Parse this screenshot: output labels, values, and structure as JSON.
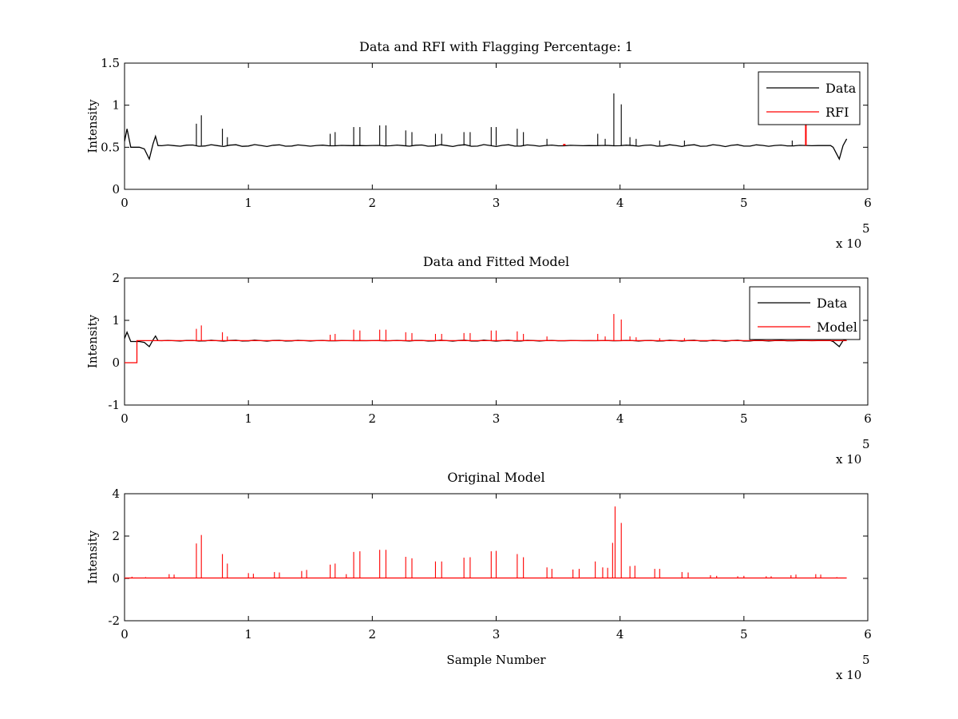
{
  "figure": {
    "background": "#ffffff",
    "panels_count": 3
  },
  "chart_data": [
    {
      "type": "line",
      "title": "Data and RFI with Flagging Percentage: 1",
      "xlabel": "",
      "ylabel": "Intensity",
      "xlim": [
        0,
        6
      ],
      "ylim": [
        0,
        1.5
      ],
      "x_ticks": [
        "0",
        "1",
        "2",
        "3",
        "4",
        "5",
        "6"
      ],
      "y_ticks": [
        "0",
        "0.5",
        "1",
        "1.5"
      ],
      "x_multiplier": "x 10",
      "x_multiplier_exp": "5",
      "legend": {
        "position": "top-right",
        "entries": [
          "Data",
          "RFI"
        ]
      },
      "colors": {
        "Data": "#000000",
        "RFI": "#ff0000"
      },
      "series": [
        {
          "name": "Data",
          "color": "#000000",
          "baseline": 0.52,
          "x_end": 5.83,
          "features": [
            {
              "x": 0.02,
              "y": 0.72
            },
            {
              "x": 0.05,
              "y": 0.5
            },
            {
              "x": 0.2,
              "y": 0.36
            },
            {
              "x": 0.25,
              "y": 0.63
            },
            {
              "x": 5.77,
              "y": 0.36
            },
            {
              "x": 5.83,
              "y": 0.6
            }
          ],
          "spikes": [
            {
              "x": 0.58,
              "y": 0.78
            },
            {
              "x": 0.62,
              "y": 0.88
            },
            {
              "x": 0.79,
              "y": 0.72
            },
            {
              "x": 0.83,
              "y": 0.62
            },
            {
              "x": 1.66,
              "y": 0.66
            },
            {
              "x": 1.7,
              "y": 0.68
            },
            {
              "x": 1.85,
              "y": 0.74
            },
            {
              "x": 1.9,
              "y": 0.74
            },
            {
              "x": 2.06,
              "y": 0.76
            },
            {
              "x": 2.11,
              "y": 0.76
            },
            {
              "x": 2.27,
              "y": 0.7
            },
            {
              "x": 2.32,
              "y": 0.68
            },
            {
              "x": 2.51,
              "y": 0.66
            },
            {
              "x": 2.56,
              "y": 0.66
            },
            {
              "x": 2.74,
              "y": 0.68
            },
            {
              "x": 2.79,
              "y": 0.68
            },
            {
              "x": 2.96,
              "y": 0.74
            },
            {
              "x": 3.0,
              "y": 0.74
            },
            {
              "x": 3.17,
              "y": 0.72
            },
            {
              "x": 3.22,
              "y": 0.68
            },
            {
              "x": 3.41,
              "y": 0.6
            },
            {
              "x": 3.82,
              "y": 0.66
            },
            {
              "x": 3.88,
              "y": 0.6
            },
            {
              "x": 3.95,
              "y": 1.14
            },
            {
              "x": 4.01,
              "y": 1.01
            },
            {
              "x": 4.08,
              "y": 0.62
            },
            {
              "x": 4.13,
              "y": 0.6
            },
            {
              "x": 4.32,
              "y": 0.58
            },
            {
              "x": 4.52,
              "y": 0.58
            },
            {
              "x": 5.39,
              "y": 0.58
            }
          ]
        },
        {
          "name": "RFI",
          "color": "#ff0000",
          "segments": [
            {
              "x0": 3.54,
              "x1": 3.56,
              "y0": 0.53,
              "y1": 0.53
            },
            {
              "x0": 5.5,
              "x1": 5.5,
              "y0": 0.52,
              "y1": 0.78
            }
          ]
        }
      ]
    },
    {
      "type": "line",
      "title": "Data and Fitted Model",
      "xlabel": "",
      "ylabel": "Intensity",
      "xlim": [
        0,
        6
      ],
      "ylim": [
        -1,
        2
      ],
      "x_ticks": [
        "0",
        "1",
        "2",
        "3",
        "4",
        "5",
        "6"
      ],
      "y_ticks": [
        "-1",
        "0",
        "1",
        "2"
      ],
      "x_multiplier": "x 10",
      "x_multiplier_exp": "5",
      "legend": {
        "position": "top-right",
        "entries": [
          "Data",
          "Model"
        ]
      },
      "colors": {
        "Data": "#000000",
        "Model": "#ff0000"
      },
      "series": [
        {
          "name": "Data",
          "color": "#000000",
          "baseline": 0.52,
          "x_end": 5.83,
          "features": [
            {
              "x": 0.02,
              "y": 0.72
            },
            {
              "x": 0.05,
              "y": 0.5
            },
            {
              "x": 0.2,
              "y": 0.38
            },
            {
              "x": 0.25,
              "y": 0.63
            },
            {
              "x": 5.77,
              "y": 0.38
            },
            {
              "x": 5.83,
              "y": 0.55
            }
          ]
        },
        {
          "name": "Model",
          "color": "#ff0000",
          "baseline": 0.52,
          "step": {
            "x_until": 0.1,
            "y": 0.0
          },
          "x_end": 5.83,
          "spikes": [
            {
              "x": 0.58,
              "y": 0.8
            },
            {
              "x": 0.62,
              "y": 0.88
            },
            {
              "x": 0.79,
              "y": 0.72
            },
            {
              "x": 0.83,
              "y": 0.62
            },
            {
              "x": 1.66,
              "y": 0.66
            },
            {
              "x": 1.7,
              "y": 0.68
            },
            {
              "x": 1.85,
              "y": 0.78
            },
            {
              "x": 1.9,
              "y": 0.76
            },
            {
              "x": 2.06,
              "y": 0.78
            },
            {
              "x": 2.11,
              "y": 0.78
            },
            {
              "x": 2.27,
              "y": 0.72
            },
            {
              "x": 2.32,
              "y": 0.7
            },
            {
              "x": 2.51,
              "y": 0.68
            },
            {
              "x": 2.56,
              "y": 0.68
            },
            {
              "x": 2.74,
              "y": 0.7
            },
            {
              "x": 2.79,
              "y": 0.7
            },
            {
              "x": 2.96,
              "y": 0.76
            },
            {
              "x": 3.0,
              "y": 0.76
            },
            {
              "x": 3.17,
              "y": 0.74
            },
            {
              "x": 3.22,
              "y": 0.68
            },
            {
              "x": 3.41,
              "y": 0.62
            },
            {
              "x": 3.82,
              "y": 0.68
            },
            {
              "x": 3.88,
              "y": 0.62
            },
            {
              "x": 3.95,
              "y": 1.15
            },
            {
              "x": 4.01,
              "y": 1.02
            },
            {
              "x": 4.08,
              "y": 0.62
            },
            {
              "x": 4.13,
              "y": 0.6
            },
            {
              "x": 4.32,
              "y": 0.58
            },
            {
              "x": 4.52,
              "y": 0.58
            }
          ]
        }
      ]
    },
    {
      "type": "line",
      "title": "Original Model",
      "xlabel": "Sample Number",
      "ylabel": "Intensity",
      "xlim": [
        0,
        6
      ],
      "ylim": [
        -2,
        4
      ],
      "x_ticks": [
        "0",
        "1",
        "2",
        "3",
        "4",
        "5",
        "6"
      ],
      "y_ticks": [
        "-2",
        "0",
        "2",
        "4"
      ],
      "x_multiplier": "x 10",
      "x_multiplier_exp": "5",
      "legend": null,
      "colors": {
        "Model": "#ff0000"
      },
      "series": [
        {
          "color": "#ff0000",
          "baseline": 0.02,
          "x_end": 5.83,
          "spikes": [
            {
              "x": 0.06,
              "y": 0.08
            },
            {
              "x": 0.17,
              "y": 0.06
            },
            {
              "x": 0.36,
              "y": 0.2
            },
            {
              "x": 0.4,
              "y": 0.18
            },
            {
              "x": 0.58,
              "y": 1.65
            },
            {
              "x": 0.62,
              "y": 2.05
            },
            {
              "x": 0.79,
              "y": 1.15
            },
            {
              "x": 0.83,
              "y": 0.7
            },
            {
              "x": 1.0,
              "y": 0.25
            },
            {
              "x": 1.04,
              "y": 0.22
            },
            {
              "x": 1.21,
              "y": 0.3
            },
            {
              "x": 1.25,
              "y": 0.28
            },
            {
              "x": 1.43,
              "y": 0.35
            },
            {
              "x": 1.47,
              "y": 0.4
            },
            {
              "x": 1.66,
              "y": 0.65
            },
            {
              "x": 1.7,
              "y": 0.7
            },
            {
              "x": 1.79,
              "y": 0.2
            },
            {
              "x": 1.85,
              "y": 1.25
            },
            {
              "x": 1.9,
              "y": 1.28
            },
            {
              "x": 2.06,
              "y": 1.35
            },
            {
              "x": 2.11,
              "y": 1.35
            },
            {
              "x": 2.27,
              "y": 1.02
            },
            {
              "x": 2.32,
              "y": 0.95
            },
            {
              "x": 2.51,
              "y": 0.8
            },
            {
              "x": 2.56,
              "y": 0.8
            },
            {
              "x": 2.74,
              "y": 0.98
            },
            {
              "x": 2.79,
              "y": 1.0
            },
            {
              "x": 2.96,
              "y": 1.28
            },
            {
              "x": 3.0,
              "y": 1.3
            },
            {
              "x": 3.17,
              "y": 1.15
            },
            {
              "x": 3.22,
              "y": 1.0
            },
            {
              "x": 3.41,
              "y": 0.52
            },
            {
              "x": 3.45,
              "y": 0.45
            },
            {
              "x": 3.62,
              "y": 0.42
            },
            {
              "x": 3.67,
              "y": 0.45
            },
            {
              "x": 3.8,
              "y": 0.8
            },
            {
              "x": 3.86,
              "y": 0.52
            },
            {
              "x": 3.9,
              "y": 0.5
            },
            {
              "x": 3.94,
              "y": 1.68
            },
            {
              "x": 3.96,
              "y": 3.4
            },
            {
              "x": 4.01,
              "y": 2.62
            },
            {
              "x": 4.08,
              "y": 0.58
            },
            {
              "x": 4.12,
              "y": 0.6
            },
            {
              "x": 4.28,
              "y": 0.45
            },
            {
              "x": 4.32,
              "y": 0.45
            },
            {
              "x": 4.5,
              "y": 0.3
            },
            {
              "x": 4.55,
              "y": 0.28
            },
            {
              "x": 4.73,
              "y": 0.15
            },
            {
              "x": 4.78,
              "y": 0.12
            },
            {
              "x": 4.95,
              "y": 0.1
            },
            {
              "x": 5.0,
              "y": 0.12
            },
            {
              "x": 5.18,
              "y": 0.1
            },
            {
              "x": 5.22,
              "y": 0.1
            },
            {
              "x": 5.38,
              "y": 0.15
            },
            {
              "x": 5.42,
              "y": 0.18
            },
            {
              "x": 5.58,
              "y": 0.2
            },
            {
              "x": 5.62,
              "y": 0.18
            },
            {
              "x": 5.75,
              "y": 0.06
            }
          ]
        }
      ]
    }
  ]
}
